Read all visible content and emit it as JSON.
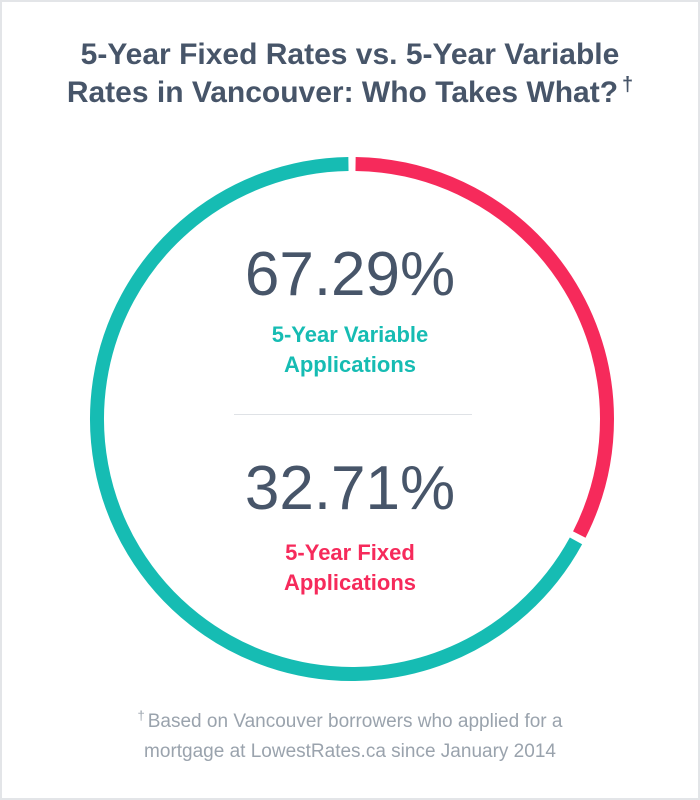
{
  "title": {
    "line1": "5-Year Fixed Rates vs. 5-Year Variable",
    "line2": "Rates in Vancouver: Who Takes What?",
    "marker": "†"
  },
  "colors": {
    "variable": "#16bcb3",
    "fixed": "#f62a5b",
    "text_dark": "#475569",
    "footnote": "#9aa3ad"
  },
  "chart_data": {
    "type": "pie",
    "style": "donut",
    "title": "5-Year Fixed Rates vs. 5-Year Variable Rates in Vancouver: Who Takes What?",
    "categories": [
      "5-Year Variable Applications",
      "5-Year Fixed Applications"
    ],
    "values": [
      67.29,
      32.71
    ],
    "labels": [
      "67.29%",
      "32.71%"
    ],
    "colors": [
      "#16bcb3",
      "#f62a5b"
    ]
  },
  "stats": {
    "variable": {
      "value": "67.29%",
      "label_line1": "5-Year Variable",
      "label_line2": "Applications"
    },
    "fixed": {
      "value": "32.71%",
      "label_line1": "5-Year Fixed",
      "label_line2": "Applications"
    }
  },
  "footnote": {
    "marker": "†",
    "line1": "Based on Vancouver borrowers who applied for a",
    "line2": "mortgage at LowestRates.ca since January 2014"
  }
}
